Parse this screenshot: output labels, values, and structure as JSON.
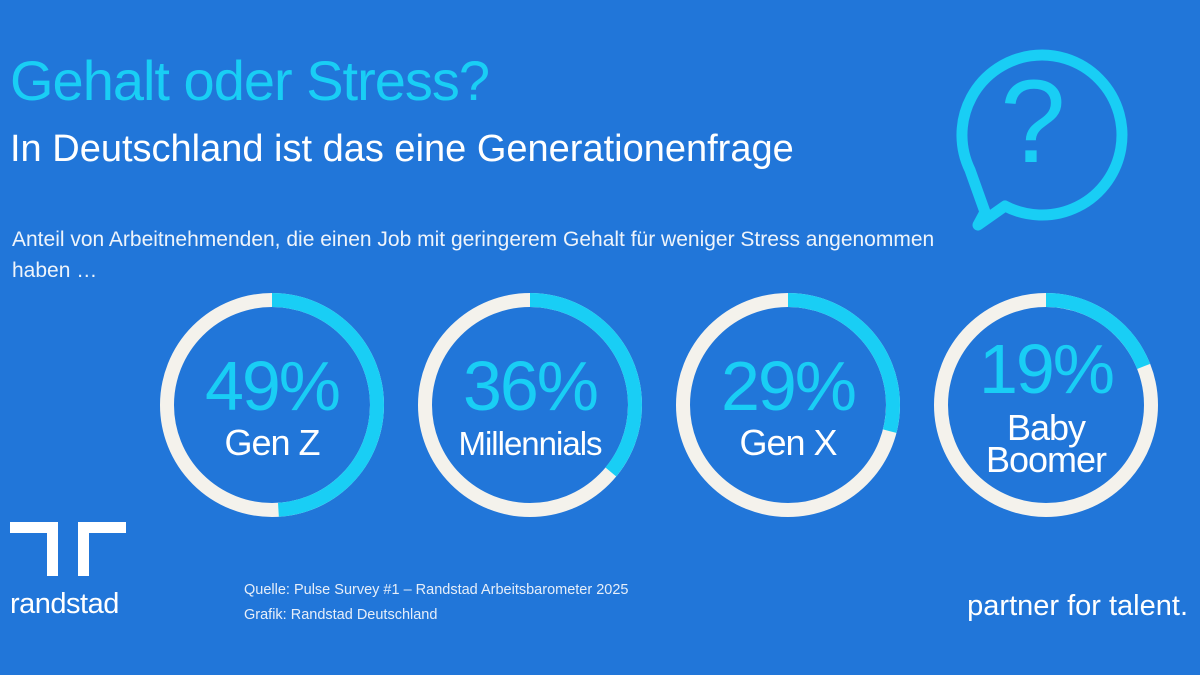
{
  "header": {
    "title": "Gehalt oder Stress?",
    "subtitle": "In Deutschland ist das eine Generationenfrage"
  },
  "description": "Anteil von Arbeitnehmenden, die einen Job mit geringerem Gehalt für weniger Stress angenommen haben …",
  "chart_data": {
    "type": "donut",
    "categories": [
      "Gen Z",
      "Millennials",
      "Gen X",
      "Baby Boomer"
    ],
    "values": [
      49,
      36,
      29,
      19
    ],
    "value_labels": [
      "49%",
      "36%",
      "29%",
      "19%"
    ],
    "category_lines": [
      [
        "Gen Z"
      ],
      [
        "Millennials"
      ],
      [
        "Gen X"
      ],
      [
        "Baby",
        "Boomer"
      ]
    ],
    "max": 100,
    "colors": {
      "filled": "#19cef5",
      "remainder": "#f4f2ec",
      "background": "#2176d9"
    }
  },
  "icons": {
    "question": "question-speech-bubble-icon",
    "logo": "randstad-logo-icon"
  },
  "footer": {
    "source": "Quelle: Pulse Survey #1 – Randstad Arbeitsbarometer 2025",
    "graphic": "Grafik: Randstad Deutschland",
    "brand": "randstad",
    "tagline": "partner for talent."
  }
}
